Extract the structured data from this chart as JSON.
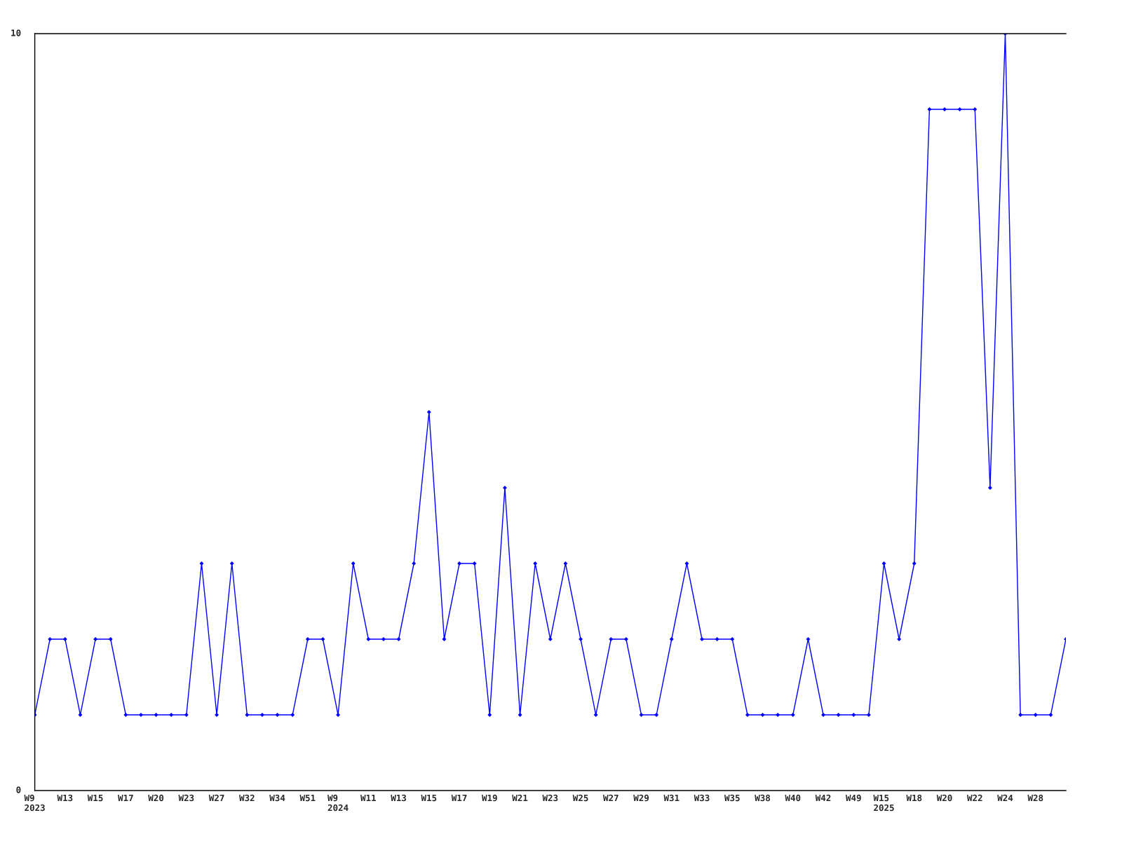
{
  "chart_data": {
    "type": "line",
    "categories": [
      "W9\n2023",
      null,
      "W13",
      null,
      "W15",
      null,
      "W17",
      null,
      "W20",
      null,
      "W23",
      null,
      "W27",
      null,
      "W32",
      null,
      "W34",
      null,
      "W51",
      null,
      "W9\n2024",
      null,
      "W11",
      null,
      "W13",
      null,
      "W15",
      null,
      "W17",
      null,
      "W19",
      null,
      "W21",
      null,
      "W23",
      null,
      "W25",
      null,
      "W27",
      null,
      "W29",
      null,
      "W31",
      null,
      "W33",
      null,
      "W35",
      null,
      "W38",
      null,
      "W40",
      null,
      "W42",
      null,
      "W49",
      null,
      "W15\n2025",
      null,
      "W18",
      null,
      "W20",
      null,
      "W22",
      null,
      "W24",
      null,
      "W28",
      null,
      null
    ],
    "series": [
      {
        "color": "#0000ff",
        "values": [
          1,
          2,
          2,
          1,
          2,
          2,
          1,
          1,
          1,
          1,
          1,
          3,
          1,
          3,
          1,
          1,
          1,
          1,
          2,
          2,
          1,
          3,
          2,
          2,
          2,
          3,
          5,
          2,
          3,
          3,
          1,
          4,
          1,
          3,
          2,
          3,
          2,
          1,
          2,
          2,
          1,
          1,
          2,
          3,
          2,
          2,
          2,
          1,
          1,
          1,
          1,
          2,
          1,
          1,
          1,
          1,
          3,
          2,
          3,
          9,
          9,
          9,
          9,
          4,
          10,
          1,
          1,
          1,
          2
        ]
      }
    ],
    "ylim": [
      0,
      10
    ],
    "yticks": [
      0,
      10
    ],
    "marker": "diamond",
    "line_style": "solid",
    "grid": false
  }
}
